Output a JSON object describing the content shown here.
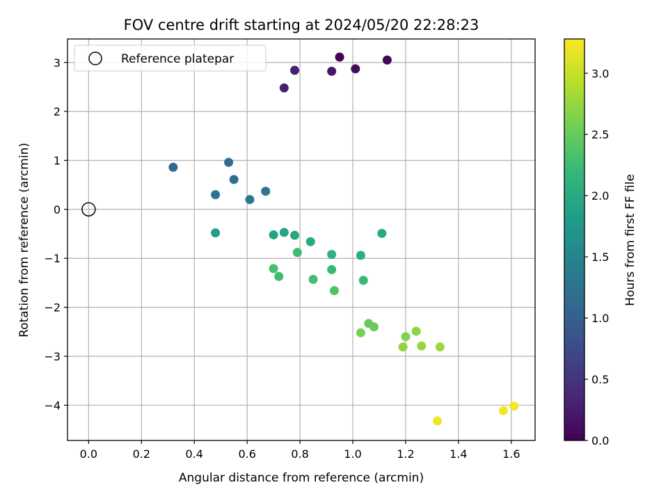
{
  "chart_data": {
    "type": "scatter",
    "title": "FOV centre drift starting at 2024/05/20 22:28:23",
    "xlabel": "Angular distance from reference (arcmin)",
    "ylabel": "Rotation from reference (arcmin)",
    "xlim": [
      -0.08,
      1.69
    ],
    "ylim": [
      -4.72,
      3.48
    ],
    "xticks": [
      "0.0",
      "0.2",
      "0.4",
      "0.6",
      "0.8",
      "1.0",
      "1.2",
      "1.4",
      "1.6"
    ],
    "yticks": [
      "3",
      "2",
      "1",
      "0",
      "−1",
      "−2",
      "−3",
      "−4"
    ],
    "grid": true,
    "legend": {
      "placement": "top-left",
      "entries": [
        "Reference platepar"
      ]
    },
    "reference_point": {
      "x": 0.0,
      "y": 0.0,
      "marker": "open-circle"
    },
    "colorbar": {
      "label": "Hours from first FF file",
      "range": [
        0.0,
        3.28
      ],
      "ticks": [
        "0.0",
        "0.5",
        "1.0",
        "1.5",
        "2.0",
        "2.5",
        "3.0"
      ],
      "colormap": "viridis"
    },
    "points": [
      {
        "x": 0.95,
        "y": 3.11,
        "c": 0.02
      },
      {
        "x": 1.13,
        "y": 3.05,
        "c": 0.06
      },
      {
        "x": 1.01,
        "y": 2.87,
        "c": 0.1
      },
      {
        "x": 0.92,
        "y": 2.82,
        "c": 0.2
      },
      {
        "x": 0.78,
        "y": 2.84,
        "c": 0.3
      },
      {
        "x": 0.74,
        "y": 2.48,
        "c": 0.28
      },
      {
        "x": 0.32,
        "y": 0.86,
        "c": 1.1
      },
      {
        "x": 0.53,
        "y": 0.96,
        "c": 1.15
      },
      {
        "x": 0.55,
        "y": 0.61,
        "c": 1.2
      },
      {
        "x": 0.48,
        "y": 0.3,
        "c": 1.25
      },
      {
        "x": 0.67,
        "y": 0.37,
        "c": 1.3
      },
      {
        "x": 0.61,
        "y": 0.2,
        "c": 1.35
      },
      {
        "x": 0.48,
        "y": -0.48,
        "c": 1.85
      },
      {
        "x": 0.7,
        "y": -0.52,
        "c": 1.9
      },
      {
        "x": 0.74,
        "y": -0.47,
        "c": 1.92
      },
      {
        "x": 0.78,
        "y": -0.53,
        "c": 1.95
      },
      {
        "x": 0.84,
        "y": -0.66,
        "c": 1.97
      },
      {
        "x": 1.11,
        "y": -0.49,
        "c": 2.0
      },
      {
        "x": 1.03,
        "y": -0.94,
        "c": 2.05
      },
      {
        "x": 0.92,
        "y": -0.92,
        "c": 2.1
      },
      {
        "x": 0.79,
        "y": -0.88,
        "c": 2.25
      },
      {
        "x": 0.7,
        "y": -1.21,
        "c": 2.3
      },
      {
        "x": 0.72,
        "y": -1.37,
        "c": 2.25
      },
      {
        "x": 0.92,
        "y": -1.23,
        "c": 2.2
      },
      {
        "x": 0.85,
        "y": -1.43,
        "c": 2.3
      },
      {
        "x": 1.04,
        "y": -1.45,
        "c": 2.22
      },
      {
        "x": 0.93,
        "y": -1.66,
        "c": 2.35
      },
      {
        "x": 1.06,
        "y": -2.33,
        "c": 2.5
      },
      {
        "x": 1.08,
        "y": -2.4,
        "c": 2.52
      },
      {
        "x": 1.03,
        "y": -2.52,
        "c": 2.6
      },
      {
        "x": 1.2,
        "y": -2.6,
        "c": 2.65
      },
      {
        "x": 1.24,
        "y": -2.49,
        "c": 2.7
      },
      {
        "x": 1.19,
        "y": -2.81,
        "c": 2.72
      },
      {
        "x": 1.26,
        "y": -2.79,
        "c": 2.75
      },
      {
        "x": 1.33,
        "y": -2.81,
        "c": 2.78
      },
      {
        "x": 1.32,
        "y": -4.32,
        "c": 3.2
      },
      {
        "x": 1.57,
        "y": -4.11,
        "c": 3.22
      },
      {
        "x": 1.61,
        "y": -4.02,
        "c": 3.25
      }
    ]
  },
  "colors": {
    "viridis": [
      "#440154",
      "#482878",
      "#3e4989",
      "#31688e",
      "#26828e",
      "#1f9e89",
      "#35b779",
      "#6ece58",
      "#b5de2b",
      "#fde725"
    ],
    "grid": "#b0b0b0",
    "frame": "#000000"
  }
}
